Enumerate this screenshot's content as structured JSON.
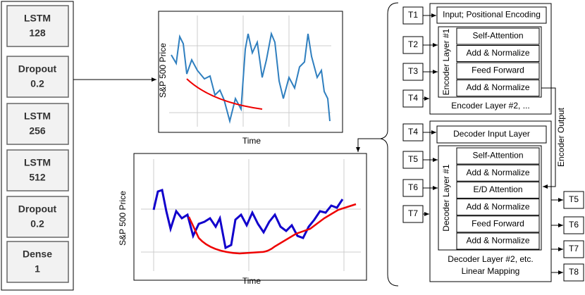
{
  "lstm_model": {
    "layers": [
      {
        "name": "LSTM",
        "param": "128"
      },
      {
        "name": "Dropout",
        "param": "0.2"
      },
      {
        "name": "LSTM",
        "param": "256"
      },
      {
        "name": "LSTM",
        "param": "512"
      },
      {
        "name": "Dropout",
        "param": "0.2"
      },
      {
        "name": "Dense",
        "param": "1"
      }
    ]
  },
  "plots": [
    {
      "ylabel": "S&P 500 Price",
      "xlabel": "Time"
    },
    {
      "ylabel": "S&P 500 Price",
      "xlabel": "Time"
    }
  ],
  "transformer": {
    "encoder_inputs": [
      "T1",
      "T2",
      "T3",
      "T4"
    ],
    "decoder_inputs": [
      "T4",
      "T5",
      "T6",
      "T7"
    ],
    "outputs": [
      "T5",
      "T6",
      "T7",
      "T8"
    ],
    "encoder": {
      "input": "Input; Positional Encoding",
      "layer_label": "Encoder Layer #1",
      "blocks": [
        "Self-Attention",
        "Add & Normalize",
        "Feed Forward",
        "Add & Normalize"
      ],
      "more": "Encoder Layer #2, ..."
    },
    "decoder": {
      "input": "Decoder Input Layer",
      "layer_label": "Decoder Layer #1",
      "blocks": [
        "Self-Attention",
        "Add & Normalize",
        "E/D Attention",
        "Add & Normalize",
        "Feed Forward",
        "Add & Normalize"
      ],
      "more": "Decoder Layer #2, etc.",
      "final": "Linear Mapping"
    },
    "link_label": "Encoder Output"
  }
}
